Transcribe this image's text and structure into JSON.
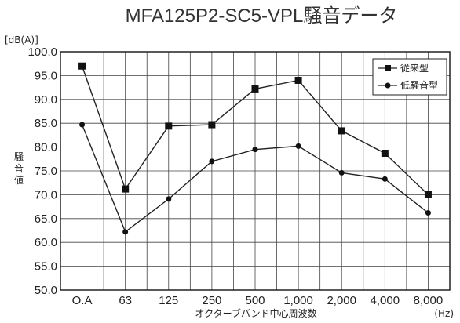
{
  "chart_data": {
    "type": "line",
    "title": "MFA125P2-SC5-VPL騒音データ",
    "yunit": "[dB(A)]",
    "ylabel": "騒音値",
    "xlabel": "オクターブバンド中心周波数",
    "xunit": "(Hz)",
    "categories": [
      "O.A",
      "63",
      "125",
      "250",
      "500",
      "1,000",
      "2,000",
      "4,000",
      "8,000"
    ],
    "ylim": [
      50,
      100
    ],
    "yticks": [
      "50.0",
      "55.0",
      "60.0",
      "65.0",
      "70.0",
      "75.0",
      "80.0",
      "85.0",
      "90.0",
      "95.0",
      "100.0"
    ],
    "grid": true,
    "legend_position": "top-right",
    "series": [
      {
        "name": "従来型",
        "marker": "square",
        "values": [
          97.0,
          71.2,
          84.4,
          84.7,
          92.2,
          94.0,
          83.4,
          78.7,
          70.0
        ]
      },
      {
        "name": "低騒音型",
        "marker": "circle",
        "values": [
          84.7,
          62.2,
          69.1,
          77.0,
          79.5,
          80.2,
          74.6,
          73.3,
          66.2
        ]
      }
    ]
  }
}
